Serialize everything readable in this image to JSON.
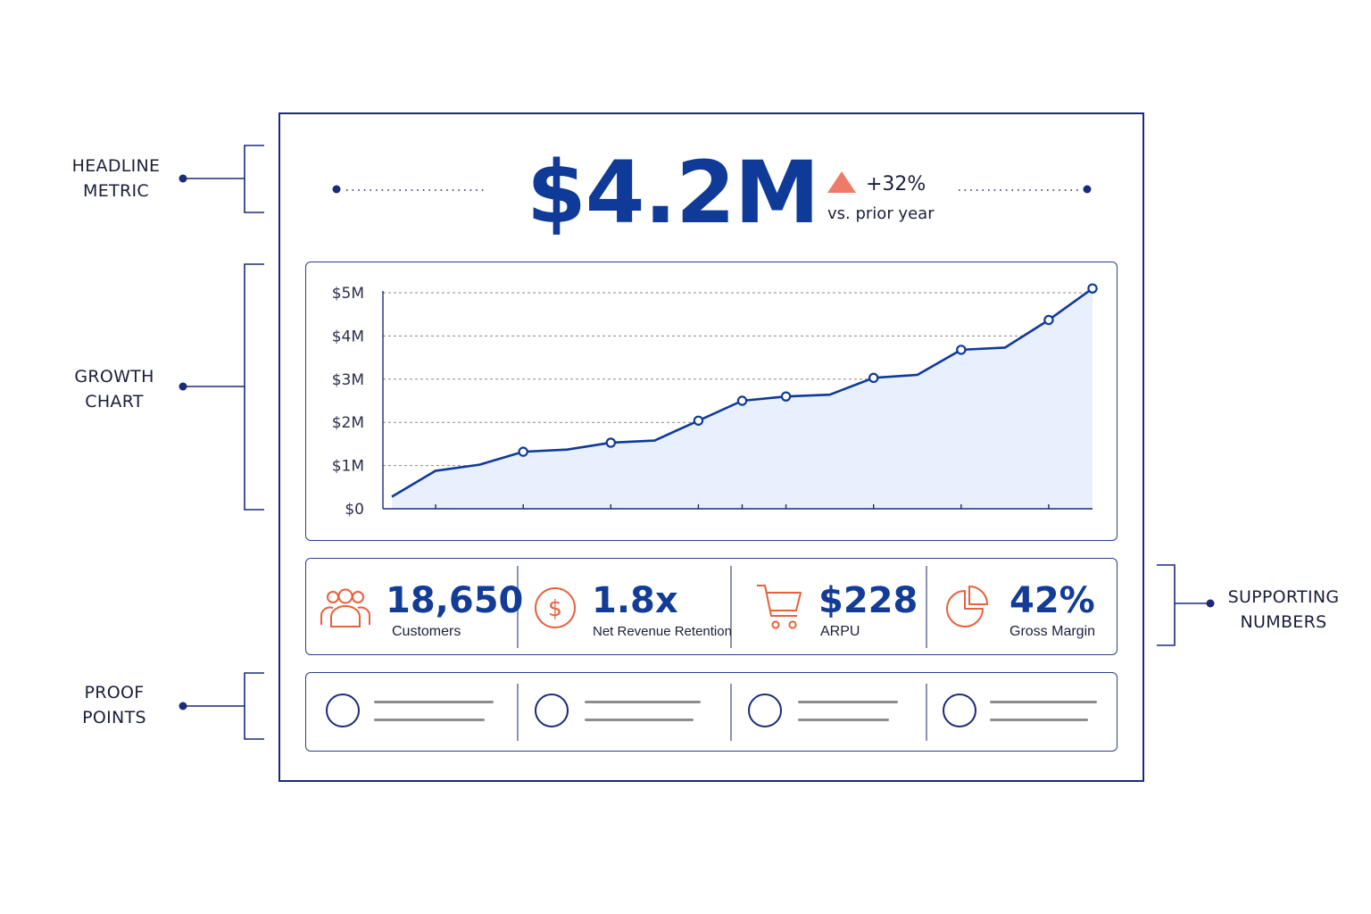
{
  "annotations": {
    "headline": [
      "HEADLINE",
      "METRIC"
    ],
    "growth": [
      "GROWTH",
      "CHART"
    ],
    "supporting": [
      "SUPPORTING",
      "NUMBERS"
    ],
    "proof": [
      "PROOF",
      "POINTS"
    ]
  },
  "headline": {
    "value": "$4.2M",
    "delta": "+32%",
    "delta_caption": "vs. prior year"
  },
  "stats": [
    {
      "icon": "people-icon",
      "value": "18,650",
      "label": "Customers"
    },
    {
      "icon": "dollar-circle-icon",
      "value": "1.8x",
      "label": "Net Revenue Retention"
    },
    {
      "icon": "shopping-cart-icon",
      "value": "$228",
      "label": "ARPU"
    },
    {
      "icon": "pie-chart-icon",
      "value": "42%",
      "label": "Gross Margin"
    }
  ],
  "colors": {
    "primary": "#0f3a97",
    "accent": "#e8603c",
    "area_fill": "#e8effd"
  },
  "chart_data": {
    "type": "area",
    "ylim": [
      0,
      5
    ],
    "y_ticks": [
      "$0",
      "$1M",
      "$2M",
      "$3M",
      "$4M",
      "$5M"
    ],
    "y_tick_values": [
      0,
      1,
      2,
      3,
      4,
      5
    ],
    "grid": true,
    "x": [
      0,
      1,
      2,
      3,
      4,
      5,
      6,
      7,
      8,
      9,
      10,
      11,
      12,
      13,
      14,
      15,
      16
    ],
    "values": [
      0.28,
      0.88,
      1.02,
      1.32,
      1.37,
      1.53,
      1.58,
      2.04,
      2.5,
      2.6,
      2.64,
      3.03,
      3.1,
      3.68,
      3.73,
      4.37,
      5.1
    ],
    "marked_points": [
      3,
      5,
      7,
      8,
      9,
      11,
      13,
      15,
      16
    ],
    "x_ticks": [
      1,
      3,
      5,
      7,
      8,
      9,
      11,
      13,
      15
    ]
  }
}
